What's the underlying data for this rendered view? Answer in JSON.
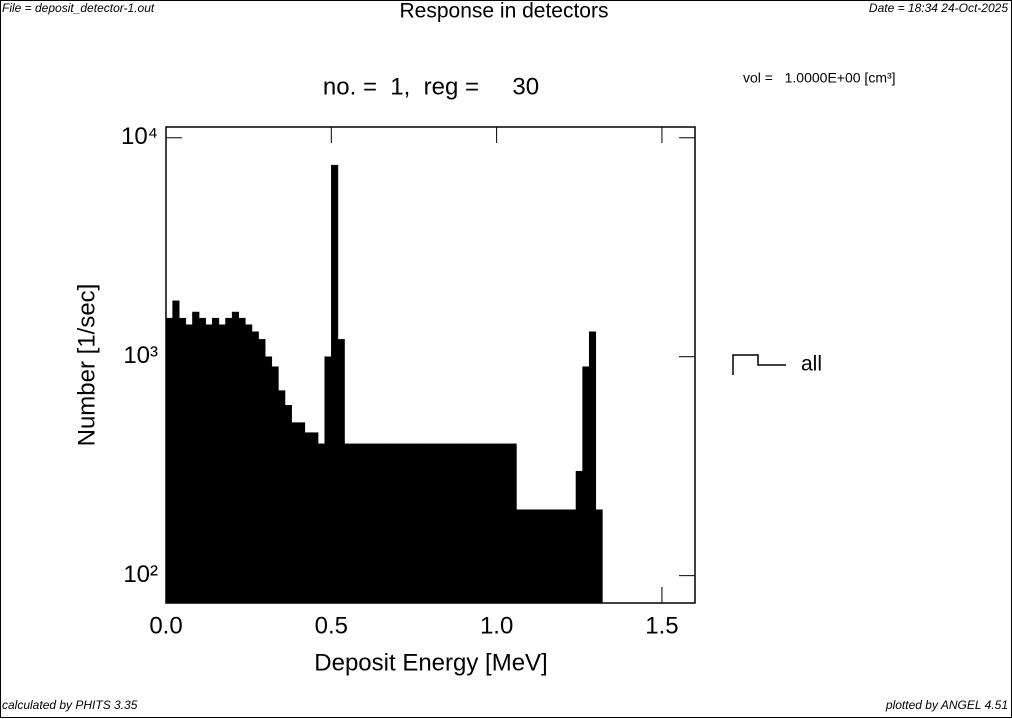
{
  "header": {
    "file": "File = deposit_detector-1.out",
    "title": "Response in detectors",
    "date": "Date = 18:34 24-Oct-2025"
  },
  "footer": {
    "left": "calculated by PHITS 3.35",
    "right": "plotted by ANGEL 4.51"
  },
  "chart_data": {
    "type": "histogram",
    "title": "no. =  1,  reg =     30",
    "annotation": "vol =   1.0000E+00 [cm³]",
    "x_label": "Deposit Energy [MeV]",
    "y_label": "Number [1/sec]",
    "bins": [
      0,
      0.02,
      0.04,
      0.06,
      0.08,
      0.1,
      0.12,
      0.14,
      0.16,
      0.18,
      0.2,
      0.22,
      0.24,
      0.26,
      0.28,
      0.3,
      0.32,
      0.34,
      0.36,
      0.38,
      0.4,
      0.42,
      0.44,
      0.46,
      0.48,
      0.5,
      0.52,
      0.54,
      0.56,
      0.58,
      0.6,
      0.62,
      0.64,
      0.66,
      0.68,
      0.7,
      0.72,
      0.74,
      0.76,
      0.78,
      0.8,
      0.82,
      0.84,
      0.86,
      0.88,
      0.9,
      0.92,
      0.94,
      0.96,
      0.98,
      1,
      1.02,
      1.04,
      1.06,
      1.08,
      1.1,
      1.12,
      1.14,
      1.16,
      1.18,
      1.2,
      1.22,
      1.24,
      1.26,
      1.28,
      1.3,
      1.32
    ],
    "series": [
      {
        "name": "all",
        "color": "#000000",
        "values": [
          1500,
          1800,
          1500,
          1400,
          1600,
          1500,
          1400,
          1500,
          1400,
          1500,
          1600,
          1500,
          1400,
          1300,
          1200,
          1000,
          900,
          700,
          600,
          500,
          500,
          450,
          450,
          400,
          1000,
          7500,
          1200,
          400,
          400,
          400,
          400,
          400,
          400,
          400,
          400,
          400,
          400,
          400,
          400,
          400,
          400,
          400,
          400,
          400,
          400,
          400,
          400,
          400,
          400,
          400,
          400,
          400,
          400,
          200,
          200,
          200,
          200,
          200,
          200,
          200,
          200,
          200,
          300,
          900,
          1300,
          200
        ]
      }
    ],
    "xlim": [
      0,
      1.6
    ],
    "xticks": [
      {
        "value": 0,
        "label": "0.0"
      },
      0.5,
      {
        "value": 1,
        "label": "1.0"
      },
      1.5
    ],
    "ylim": [
      75,
      11200
    ],
    "yticks": [
      {
        "value": 100,
        "label": "10²"
      },
      {
        "value": 1000,
        "label": "10³"
      },
      {
        "value": 10000,
        "label": "10⁴"
      }
    ],
    "log_y": true,
    "legend": "right"
  }
}
